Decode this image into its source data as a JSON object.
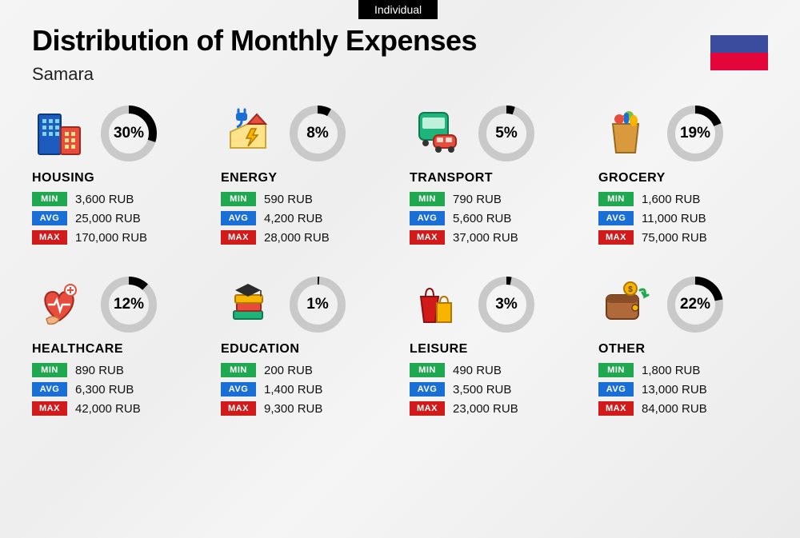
{
  "tag": "Individual",
  "title": "Distribution of Monthly Expenses",
  "subtitle": "Samara",
  "flag_colors": [
    "#3b4b9e",
    "#e4053a"
  ],
  "donut": {
    "radius": 30,
    "stroke_width": 10,
    "track_color": "#c9c9c9",
    "fill_color": "#000000"
  },
  "badges": {
    "min": {
      "label": "MIN",
      "color": "#1fa850"
    },
    "avg": {
      "label": "AVG",
      "color": "#1a6fd6"
    },
    "max": {
      "label": "MAX",
      "color": "#d11a1a"
    }
  },
  "currency": "RUB",
  "categories": [
    {
      "key": "housing",
      "name": "HOUSING",
      "percent": 30,
      "min": "3,600",
      "avg": "25,000",
      "max": "170,000",
      "icon": "buildings"
    },
    {
      "key": "energy",
      "name": "ENERGY",
      "percent": 8,
      "min": "590",
      "avg": "4,200",
      "max": "28,000",
      "icon": "energy"
    },
    {
      "key": "transport",
      "name": "TRANSPORT",
      "percent": 5,
      "min": "790",
      "avg": "5,600",
      "max": "37,000",
      "icon": "transport"
    },
    {
      "key": "grocery",
      "name": "GROCERY",
      "percent": 19,
      "min": "1,600",
      "avg": "11,000",
      "max": "75,000",
      "icon": "grocery"
    },
    {
      "key": "healthcare",
      "name": "HEALTHCARE",
      "percent": 12,
      "min": "890",
      "avg": "6,300",
      "max": "42,000",
      "icon": "healthcare"
    },
    {
      "key": "education",
      "name": "EDUCATION",
      "percent": 1,
      "min": "200",
      "avg": "1,400",
      "max": "9,300",
      "icon": "education"
    },
    {
      "key": "leisure",
      "name": "LEISURE",
      "percent": 3,
      "min": "490",
      "avg": "3,500",
      "max": "23,000",
      "icon": "leisure"
    },
    {
      "key": "other",
      "name": "OTHER",
      "percent": 22,
      "min": "1,800",
      "avg": "13,000",
      "max": "84,000",
      "icon": "other"
    }
  ]
}
